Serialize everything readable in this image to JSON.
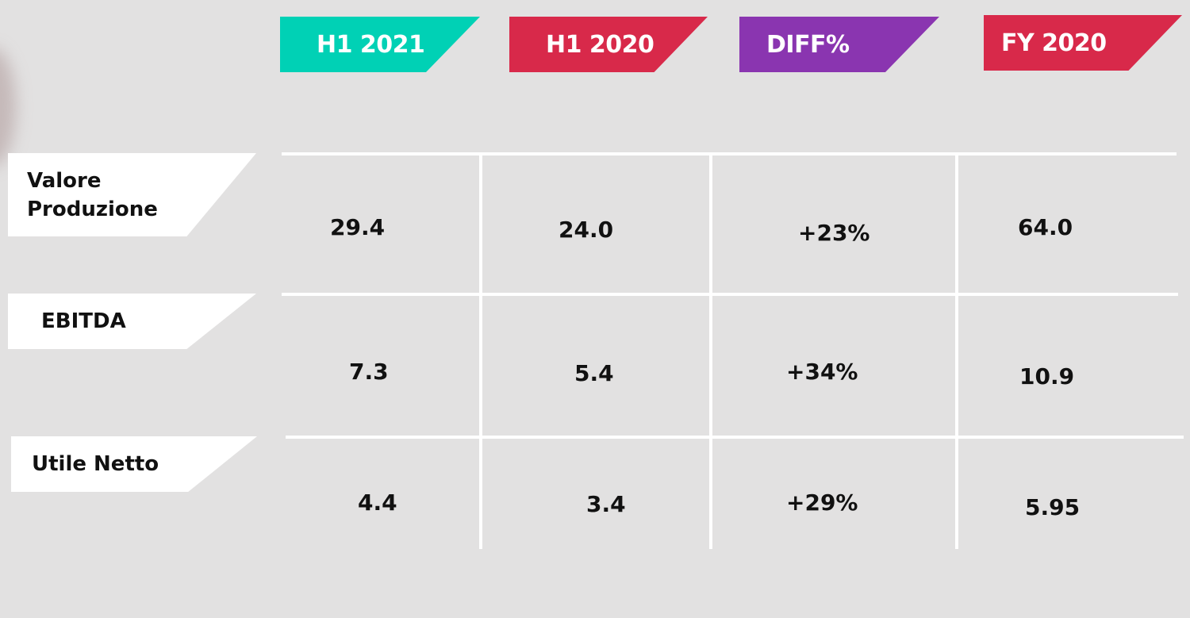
{
  "colors": {
    "background": "#e2e1e1",
    "h1_2021": "#00d1b5",
    "h1_2020": "#d8294a",
    "diff": "#8a35b0",
    "fy_2020": "#d8294a",
    "grid": "#ffffff",
    "row_label_bg": "#ffffff"
  },
  "chart_data": {
    "type": "table",
    "columns": [
      "H1 2021",
      "H1 2020",
      "DIFF%",
      "FY 2020"
    ],
    "rows": [
      {
        "label": "Valore Produzione",
        "values": [
          "29.4",
          "24.0",
          "+23%",
          "64.0"
        ]
      },
      {
        "label": "EBITDA",
        "values": [
          "7.3",
          "5.4",
          "+34%",
          "10.9"
        ]
      },
      {
        "label": "Utile Netto",
        "values": [
          "4.4",
          "3.4",
          "+29%",
          "5.95"
        ]
      }
    ]
  }
}
